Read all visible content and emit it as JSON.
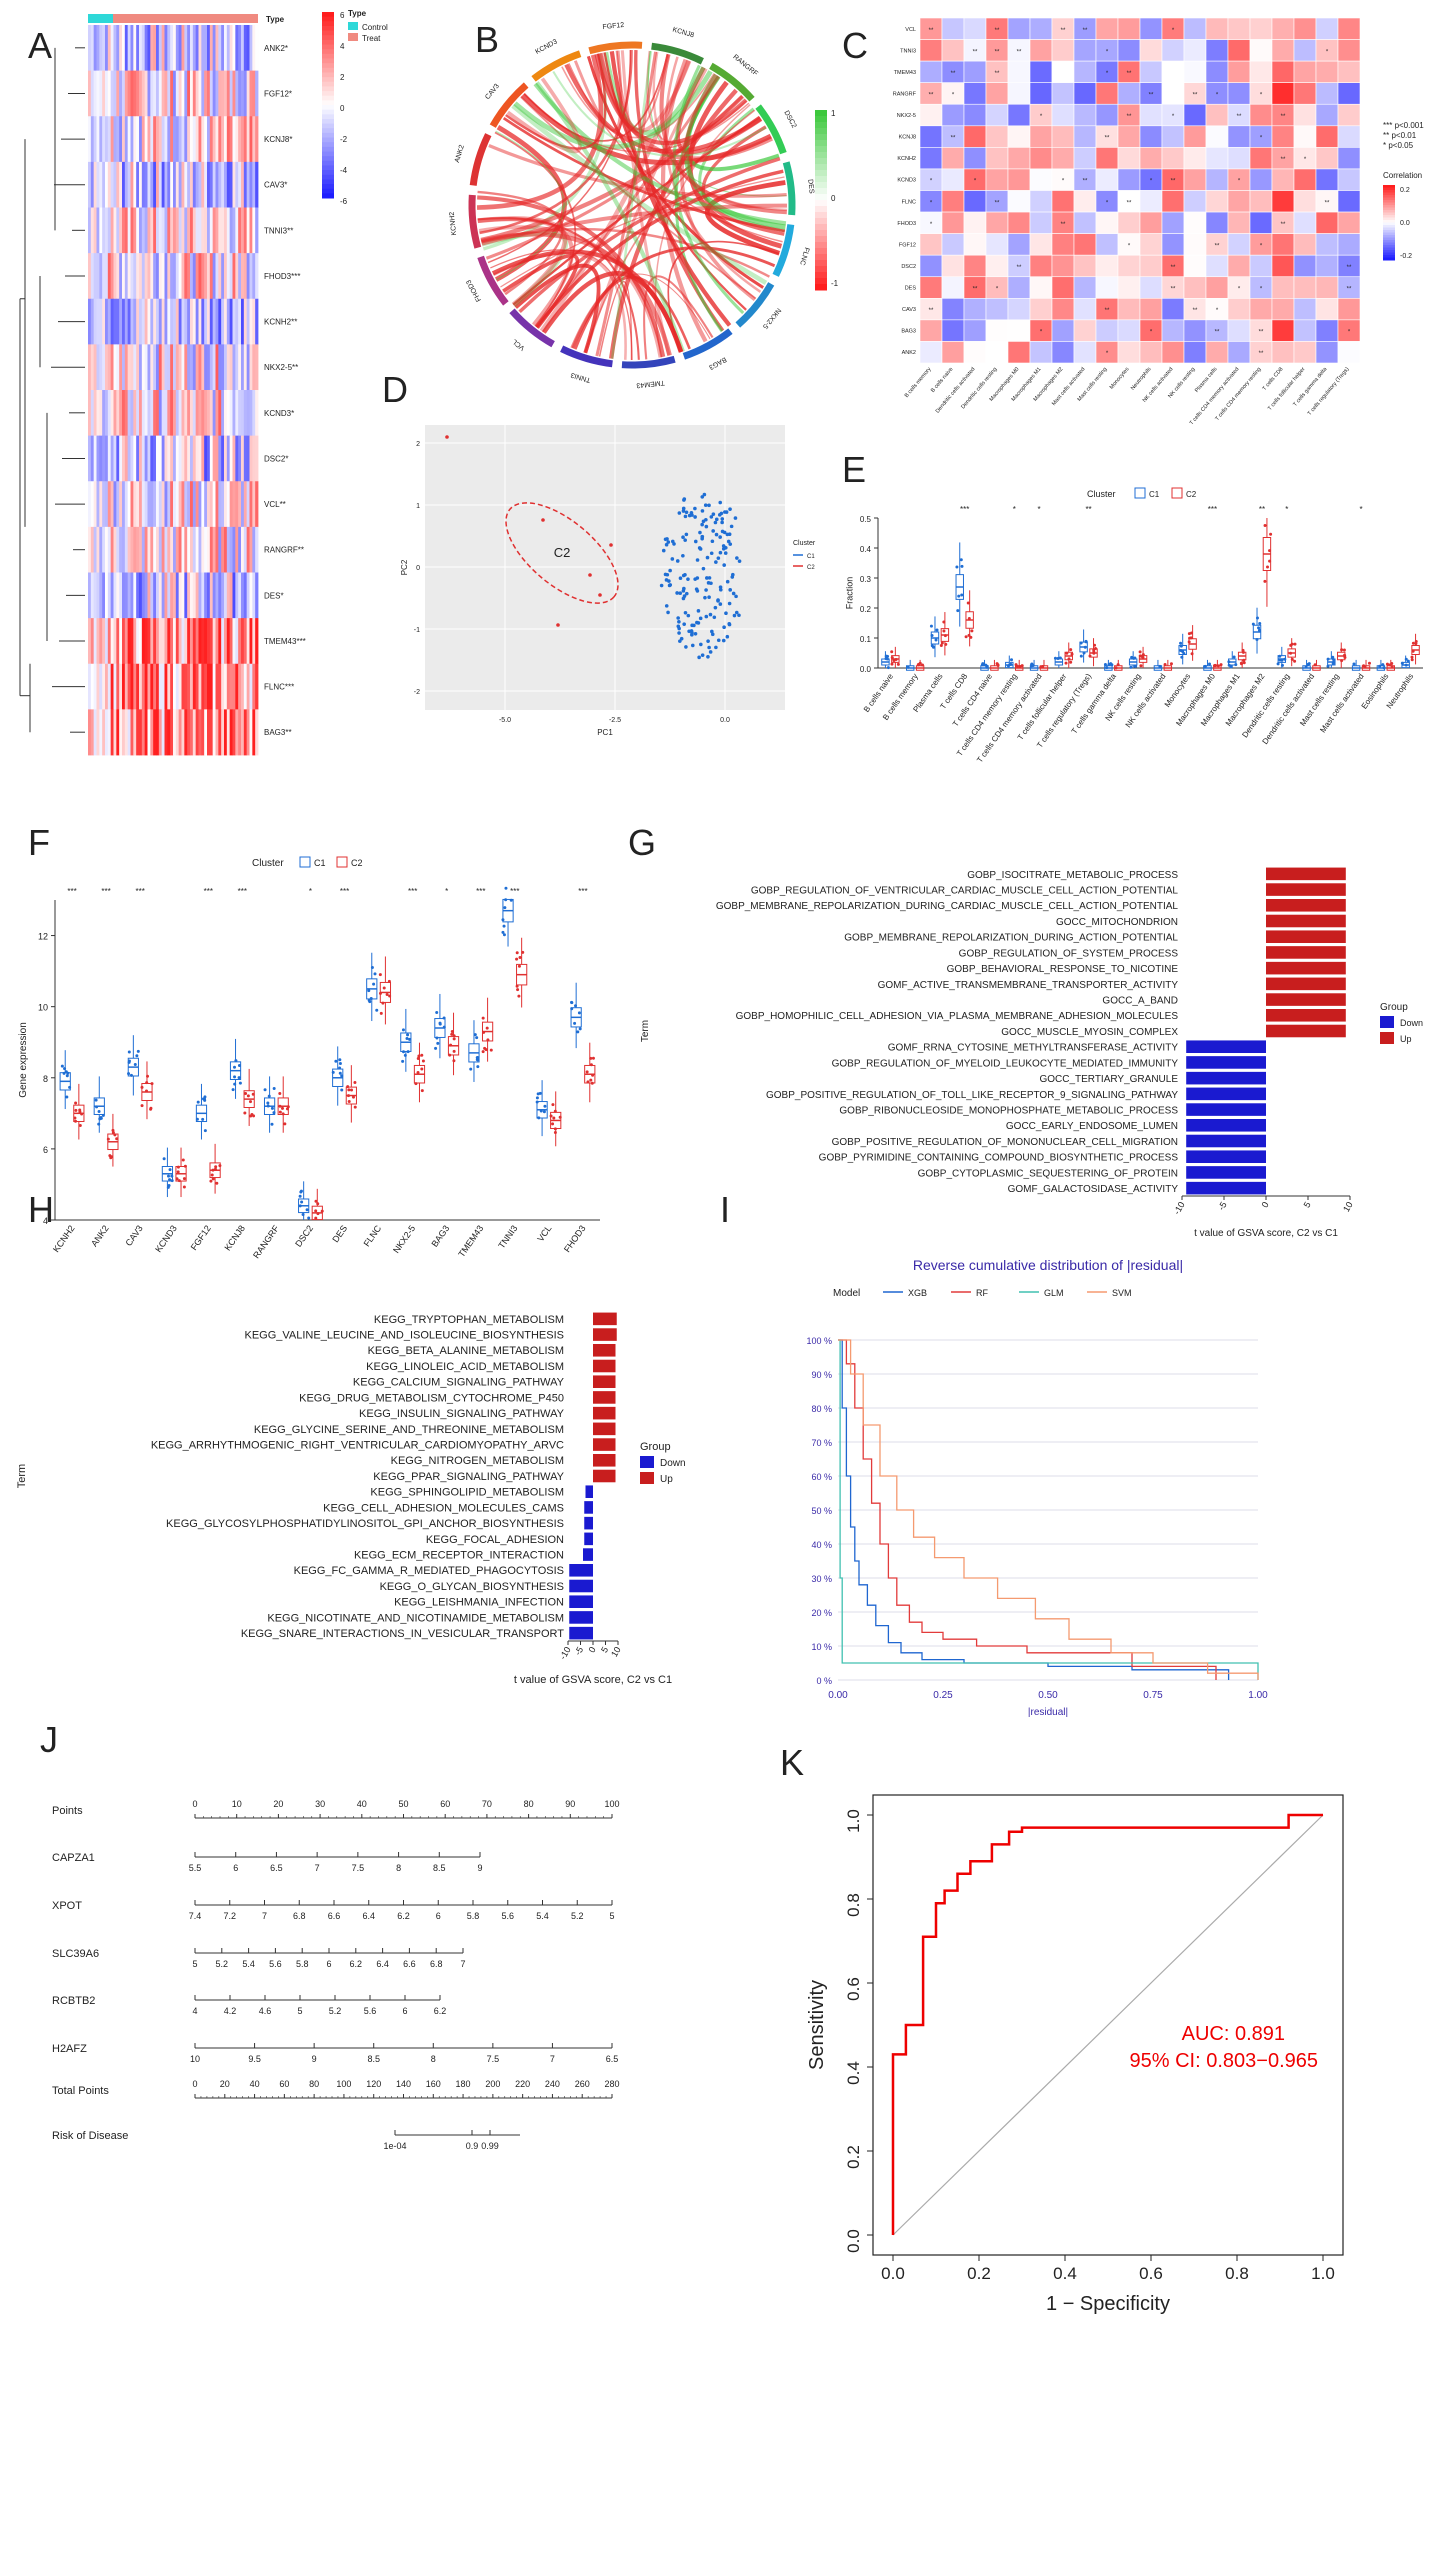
{
  "panel_letters": [
    "A",
    "B",
    "C",
    "D",
    "E",
    "F",
    "G",
    "H",
    "I",
    "J",
    "K"
  ],
  "colors": {
    "c1_blue": "#1f6ed4",
    "c2_red": "#e03030",
    "up_red": "#c81e1e",
    "down_blue": "#1a1ad0",
    "control_cyan": "#2ed8d8",
    "treat_salmon": "#f08a80",
    "roc_red": "#ee0000",
    "chord_green": "#44c844",
    "xgb": "#1f66d0",
    "rf": "#e23b3b",
    "glm": "#40c0b0",
    "svm": "#f59a70"
  },
  "chart_data": [
    {
      "panel": "A",
      "type": "heatmap",
      "genes": [
        "ANK2*",
        "FGF12*",
        "KCNJ8*",
        "CAV3*",
        "TNNI3**",
        "FHOD3***",
        "KCNH2**",
        "NKX2-5**",
        "KCND3*",
        "DSC2*",
        "VCL**",
        "RANGRF**",
        "DES*",
        "TMEM43***",
        "FLNC***",
        "BAG3**"
      ],
      "legend_title": "Type",
      "groups": [
        "Control",
        "Treat"
      ],
      "color_scale": [
        6,
        4,
        2,
        0,
        -2,
        -4,
        -6
      ]
    },
    {
      "panel": "B",
      "type": "chord",
      "sectors": [
        "FGF12",
        "KCNJ8",
        "RANGRF",
        "DSC2",
        "DES",
        "FLNC",
        "NKX2-5",
        "BAG3",
        "TMEM43",
        "TNNI3",
        "VCL",
        "FHOD3",
        "KCNH2",
        "ANK2",
        "CAV3",
        "KCND3"
      ],
      "color_scale": [
        1,
        0,
        -1
      ]
    },
    {
      "panel": "C",
      "type": "heatmap",
      "rows": [
        "VCL",
        "TNNI3",
        "TMEM43",
        "RANGRF",
        "NKX2-5",
        "KCNJ8",
        "KCNH2",
        "KCND3",
        "FLNC",
        "FHOD3",
        "FGF12",
        "DSC2",
        "DES",
        "CAV3",
        "BAG3",
        "ANK2"
      ],
      "columns": [
        "B cells memory",
        "B cells naive",
        "Dendritic cells activated",
        "Dendritic cells resting",
        "Macrophages M0",
        "Macrophages M1",
        "Macrophages M2",
        "Mast cells activated",
        "Mast cells resting",
        "Monocytes",
        "Neutrophils",
        "NK cells activated",
        "NK cells resting",
        "Plasma cells",
        "T cells CD4 memory activated",
        "T cells CD4 memory resting",
        "T cells CD8",
        "T cells follicular helper",
        "T cells gamma delta",
        "T cells regulatory (Tregs)"
      ],
      "sig_legend": [
        "*** p<0.001",
        "** p<0.01",
        "* p<0.05"
      ],
      "legend_title": "Correlation",
      "color_scale": [
        "0.2",
        "0.0",
        "-0.2"
      ]
    },
    {
      "panel": "D",
      "type": "scatter",
      "xlabel": "PC1",
      "ylabel": "PC2",
      "xticks": [
        "-5.0",
        "-2.5",
        "0.0"
      ],
      "yticks": [
        "2",
        "1",
        "0",
        "-1",
        "-2"
      ],
      "cluster_label": "C2",
      "legend_title": "Cluster",
      "legend": [
        "C1",
        "C2"
      ]
    },
    {
      "panel": "E",
      "type": "box",
      "legend_title": "Cluster",
      "legend": [
        "C1",
        "C2"
      ],
      "ylabel": "Fraction",
      "yticks": [
        "0.0",
        "0.1",
        "0.2",
        "0.3",
        "0.4",
        "0.5"
      ],
      "categories": [
        "B cells naive",
        "B cells memory",
        "Plasma cells",
        "T cells CD8",
        "T cells CD4 naive",
        "T cells CD4 memory resting",
        "T cells CD4 memory activated",
        "T cells follicular helper",
        "T cells regulatory (Tregs)",
        "T cells gamma delta",
        "NK cells resting",
        "NK cells activated",
        "Monocytes",
        "Macrophages M0",
        "Macrophages M1",
        "Macrophages M2",
        "Dendritic cells resting",
        "Dendritic cells activated",
        "Mast cells resting",
        "Mast cells activated",
        "Eosinophils",
        "Neutrophils"
      ],
      "significance": [
        "",
        "",
        "",
        "***",
        "",
        "*",
        "*",
        "",
        "**",
        "",
        "",
        "",
        "",
        "***",
        "",
        "**",
        "*",
        "",
        "",
        "*",
        "",
        ""
      ],
      "c1_median": [
        0.02,
        0.0,
        0.1,
        0.27,
        0.0,
        0.01,
        0.0,
        0.02,
        0.07,
        0.0,
        0.02,
        0.0,
        0.06,
        0.0,
        0.02,
        0.12,
        0.03,
        0.0,
        0.02,
        0.0,
        0.0,
        0.01
      ],
      "c2_median": [
        0.03,
        0.0,
        0.11,
        0.16,
        0.0,
        0.0,
        0.0,
        0.04,
        0.05,
        0.0,
        0.03,
        0.0,
        0.08,
        0.0,
        0.04,
        0.38,
        0.05,
        0.0,
        0.04,
        0.0,
        0.0,
        0.06
      ]
    },
    {
      "panel": "F",
      "type": "box",
      "legend_title": "Cluster",
      "legend": [
        "C1",
        "C2"
      ],
      "ylabel": "Gene expression",
      "ylim": [
        4,
        13
      ],
      "yticks": [
        "4",
        "6",
        "8",
        "10",
        "12"
      ],
      "categories": [
        "KCNH2",
        "ANK2",
        "CAV3",
        "KCND3",
        "FGF12",
        "KCNJ8",
        "RANGRF",
        "DSC2",
        "DES",
        "FLNC",
        "NKX2-5",
        "BAG3",
        "TMEM43",
        "TNNI3",
        "VCL",
        "FHOD3"
      ],
      "significance": [
        "***",
        "***",
        "***",
        "",
        "***",
        "***",
        "",
        "*",
        "***",
        "",
        "***",
        "*",
        "***",
        "***",
        "",
        "***"
      ],
      "c1_median": [
        7.9,
        7.2,
        8.3,
        5.3,
        7.0,
        8.2,
        7.2,
        4.4,
        8.0,
        10.5,
        9.0,
        9.4,
        8.7,
        12.7,
        7.1,
        9.7
      ],
      "c2_median": [
        7.0,
        6.2,
        7.6,
        5.3,
        5.4,
        7.4,
        7.2,
        4.2,
        7.5,
        10.4,
        8.1,
        8.9,
        9.3,
        10.9,
        6.8,
        8.1
      ]
    },
    {
      "panel": "G",
      "type": "bar",
      "terms": [
        "GOBP_ISOCITRATE_METABOLIC_PROCESS",
        "GOBP_REGULATION_OF_VENTRICULAR_CARDIAC_MUSCLE_CELL_ACTION_POTENTIAL",
        "GOBP_MEMBRANE_REPOLARIZATION_DURING_CARDIAC_MUSCLE_CELL_ACTION_POTENTIAL",
        "GOCC_MITOCHONDRION",
        "GOBP_MEMBRANE_REPOLARIZATION_DURING_ACTION_POTENTIAL",
        "GOBP_REGULATION_OF_SYSTEM_PROCESS",
        "GOBP_BEHAVIORAL_RESPONSE_TO_NICOTINE",
        "GOMF_ACTIVE_TRANSMEMBRANE_TRANSPORTER_ACTIVITY",
        "GOCC_A_BAND",
        "GOBP_HOMOPHILIC_CELL_ADHESION_VIA_PLASMA_MEMBRANE_ADHESION_MOLECULES",
        "GOCC_MUSCLE_MYOSIN_COMPLEX",
        "GOMF_RRNA_CYTOSINE_METHYLTRANSFERASE_ACTIVITY",
        "GOBP_REGULATION_OF_MYELOID_LEUKOCYTE_MEDIATED_IMMUNITY",
        "GOCC_TERTIARY_GRANULE",
        "GOBP_POSITIVE_REGULATION_OF_TOLL_LIKE_RECEPTOR_9_SIGNALING_PATHWAY",
        "GOBP_RIBONUCLEOSIDE_MONOPHOSPHATE_METABOLIC_PROCESS",
        "GOCC_EARLY_ENDOSOME_LUMEN",
        "GOBP_POSITIVE_REGULATION_OF_MONONUCLEAR_CELL_MIGRATION",
        "GOBP_PYRIMIDINE_CONTAINING_COMPOUND_BIOSYNTHETIC_PROCESS",
        "GOBP_CYTOPLASMIC_SEQUESTERING_OF_PROTEIN",
        "GOMF_GALACTOSIDASE_ACTIVITY"
      ],
      "values": [
        9.5,
        9.5,
        9.5,
        9.5,
        9.5,
        9.5,
        9.5,
        9.5,
        9.5,
        9.5,
        9.5,
        -9.5,
        -9.5,
        -9.5,
        -9.5,
        -9.5,
        -9.5,
        -9.5,
        -9.5,
        -9.5,
        -9.5
      ],
      "xlim": [
        -10,
        10
      ],
      "xticks": [
        "-10",
        "-5",
        "0",
        "5",
        "10"
      ],
      "xlabel": "t value of GSVA score, C2 vs C1",
      "ylabel": "Term",
      "legend_title": "Group",
      "legend": [
        "Down",
        "Up"
      ]
    },
    {
      "panel": "H",
      "type": "bar",
      "terms": [
        "KEGG_TRYPTOPHAN_METABOLISM",
        "KEGG_VALINE_LEUCINE_AND_ISOLEUCINE_BIOSYNTHESIS",
        "KEGG_BETA_ALANINE_METABOLISM",
        "KEGG_LINOLEIC_ACID_METABOLISM",
        "KEGG_CALCIUM_SIGNALING_PATHWAY",
        "KEGG_DRUG_METABOLISM_CYTOCHROME_P450",
        "KEGG_INSULIN_SIGNALING_PATHWAY",
        "KEGG_GLYCINE_SERINE_AND_THREONINE_METABOLISM",
        "KEGG_ARRHYTHMOGENIC_RIGHT_VENTRICULAR_CARDIOMYOPATHY_ARVC",
        "KEGG_NITROGEN_METABOLISM",
        "KEGG_PPAR_SIGNALING_PATHWAY",
        "KEGG_SPHINGOLIPID_METABOLISM",
        "KEGG_CELL_ADHESION_MOLECULES_CAMS",
        "KEGG_GLYCOSYLPHOSPHATIDYLINOSITOL_GPI_ANCHOR_BIOSYNTHESIS",
        "KEGG_FOCAL_ADHESION",
        "KEGG_ECM_RECEPTOR_INTERACTION",
        "KEGG_FC_GAMMA_R_MEDIATED_PHAGOCYTOSIS",
        "KEGG_O_GLYCAN_BIOSYNTHESIS",
        "KEGG_LEISHMANIA_INFECTION",
        "KEGG_NICOTINATE_AND_NICOTINAMIDE_METABOLISM",
        "KEGG_SNARE_INTERACTIONS_IN_VESICULAR_TRANSPORT"
      ],
      "values": [
        9.5,
        9.5,
        9.0,
        9.0,
        9.0,
        9.0,
        9.0,
        9.0,
        9.0,
        9.0,
        9.0,
        -3.0,
        -3.5,
        -3.5,
        -3.5,
        -4.0,
        -9.5,
        -9.5,
        -9.5,
        -9.5,
        -9.5
      ],
      "xlim": [
        -10,
        10
      ],
      "xticks": [
        "-10",
        "-5",
        "0",
        "5",
        "10"
      ],
      "xlabel": "t value of GSVA score, C2 vs C1",
      "ylabel": "Term",
      "legend_title": "Group",
      "legend": [
        "Down",
        "Up"
      ]
    },
    {
      "panel": "I",
      "type": "line",
      "title": "Reverse cumulative distribution of |residual|",
      "legend_title": "Model",
      "legend": [
        "XGB",
        "RF",
        "GLM",
        "SVM"
      ],
      "xlabel": "|residual|",
      "xticks": [
        "0.00",
        "0.25",
        "0.50",
        "0.75",
        "1.00"
      ],
      "yticks": [
        "100 %",
        "90 %",
        "80 %",
        "70 %",
        "60 %",
        "50 %",
        "40 %",
        "30 %",
        "20 %",
        "10 %",
        "0 %"
      ],
      "series": [
        {
          "name": "XGB",
          "x": [
            0,
            0.01,
            0.02,
            0.03,
            0.04,
            0.05,
            0.07,
            0.09,
            0.12,
            0.15,
            0.2,
            0.3,
            0.5,
            0.7,
            0.93
          ],
          "y": [
            1.0,
            0.8,
            0.6,
            0.45,
            0.35,
            0.28,
            0.22,
            0.16,
            0.11,
            0.08,
            0.06,
            0.05,
            0.04,
            0.03,
            0
          ]
        },
        {
          "name": "RF",
          "x": [
            0,
            0.02,
            0.04,
            0.06,
            0.08,
            0.1,
            0.12,
            0.14,
            0.17,
            0.2,
            0.25,
            0.33,
            0.45,
            0.7,
            0.9
          ],
          "y": [
            1.0,
            0.93,
            0.8,
            0.65,
            0.52,
            0.4,
            0.3,
            0.22,
            0.17,
            0.14,
            0.12,
            0.1,
            0.08,
            0.04,
            0
          ]
        },
        {
          "name": "GLM",
          "x": [
            0,
            0.005,
            0.01,
            1.0
          ],
          "y": [
            1.0,
            0.3,
            0.05,
            0
          ]
        },
        {
          "name": "SVM",
          "x": [
            0,
            0.03,
            0.06,
            0.1,
            0.14,
            0.18,
            0.23,
            0.3,
            0.38,
            0.47,
            0.55,
            0.65,
            0.75,
            0.88,
            1.0
          ],
          "y": [
            1.0,
            0.9,
            0.75,
            0.6,
            0.5,
            0.42,
            0.36,
            0.3,
            0.24,
            0.18,
            0.12,
            0.08,
            0.05,
            0.02,
            0
          ]
        }
      ]
    },
    {
      "panel": "J",
      "type": "nomogram",
      "rows": [
        {
          "label": "Points",
          "ticks": [
            "0",
            "10",
            "20",
            "30",
            "40",
            "50",
            "60",
            "70",
            "80",
            "90",
            "100"
          ]
        },
        {
          "label": "CAPZA1",
          "ticks": [
            "5.5",
            "6",
            "6.5",
            "7",
            "7.5",
            "8",
            "8.5",
            "9"
          ]
        },
        {
          "label": "XPOT",
          "ticks": [
            "7.4",
            "7.2",
            "7",
            "6.8",
            "6.6",
            "6.4",
            "6.2",
            "6",
            "5.8",
            "5.6",
            "5.4",
            "5.2",
            "5"
          ]
        },
        {
          "label": "SLC39A6",
          "ticks": [
            "5",
            "5.2",
            "5.4",
            "5.6",
            "5.8",
            "6",
            "6.2",
            "6.4",
            "6.6",
            "6.8",
            "7"
          ]
        },
        {
          "label": "RCBTB2",
          "ticks": [
            "4",
            "4.2",
            "4.6",
            "5",
            "5.2",
            "5.6",
            "6",
            "6.2"
          ]
        },
        {
          "label": "H2AFZ",
          "ticks": [
            "10",
            "9.5",
            "9",
            "8.5",
            "8",
            "7.5",
            "7",
            "6.5"
          ]
        },
        {
          "label": "Total Points",
          "ticks": [
            "0",
            "20",
            "40",
            "60",
            "80",
            "100",
            "120",
            "140",
            "160",
            "180",
            "200",
            "220",
            "240",
            "260",
            "280"
          ]
        },
        {
          "label": "Risk of Disease",
          "ticks": [
            "1e-04",
            "0.9",
            "0.99"
          ]
        }
      ]
    },
    {
      "panel": "K",
      "type": "line",
      "xlabel": "1 − Specificity",
      "ylabel": "Sensitivity",
      "xlim": [
        0,
        1
      ],
      "ylim": [
        0,
        1
      ],
      "xticks": [
        "0.0",
        "0.2",
        "0.4",
        "0.6",
        "0.8",
        "1.0"
      ],
      "yticks": [
        "0.0",
        "0.2",
        "0.4",
        "0.6",
        "0.8",
        "1.0"
      ],
      "auc_text": "AUC: 0.891",
      "ci_text": "95% CI: 0.803−0.965",
      "x": [
        0,
        0,
        0.03,
        0.03,
        0.07,
        0.07,
        0.1,
        0.1,
        0.12,
        0.12,
        0.15,
        0.15,
        0.18,
        0.18,
        0.23,
        0.23,
        0.27,
        0.27,
        0.3,
        0.3,
        0.92,
        0.92,
        1.0
      ],
      "y": [
        0,
        0.43,
        0.43,
        0.5,
        0.5,
        0.71,
        0.71,
        0.79,
        0.79,
        0.82,
        0.82,
        0.86,
        0.86,
        0.89,
        0.89,
        0.93,
        0.93,
        0.96,
        0.96,
        0.97,
        0.97,
        1.0,
        1.0
      ]
    }
  ]
}
